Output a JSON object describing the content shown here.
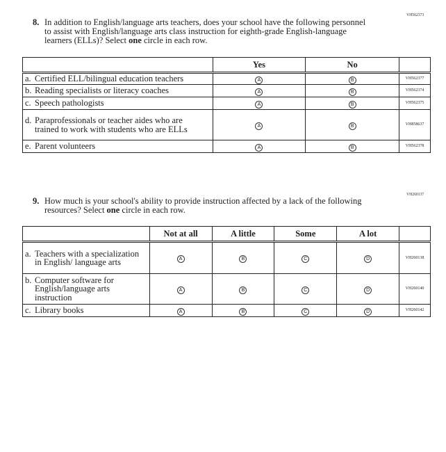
{
  "q8": {
    "code": "VH562373",
    "number": "8.",
    "text_before": "In addition to English/language arts teachers, does your school have the following personnel to assist with English/language arts class instruction for eighth-grade English-language learners (ELLs)? Select ",
    "text_bold": "one",
    "text_after": " circle in each row.",
    "columns": [
      "Yes",
      "No"
    ],
    "rows": [
      {
        "letter": "a.",
        "label": "Certified ELL/bilingual education teachers",
        "code": "VH562377"
      },
      {
        "letter": "b.",
        "label": "Reading specialists or literacy coaches",
        "code": "VH562374"
      },
      {
        "letter": "c.",
        "label": "Speech pathologists",
        "code": "VH562375"
      },
      {
        "letter": "d.",
        "label": "Paraprofessionals or teacher aides who are trained to work with students who are ELLs",
        "code": "VH858637"
      },
      {
        "letter": "e.",
        "label": "Parent volunteers",
        "code": "VH562378"
      }
    ],
    "bubbles": [
      "A",
      "B"
    ]
  },
  "q9": {
    "code": "VH260137",
    "number": "9.",
    "text_before": "How much is your school's ability to provide instruction affected by a lack of the following resources? Select ",
    "text_bold": "one",
    "text_after": " circle in each row.",
    "columns": [
      "Not at all",
      "A little",
      "Some",
      "A lot"
    ],
    "rows": [
      {
        "letter": "a.",
        "label": "Teachers with a specialization in English/ language arts",
        "code": "VH260138"
      },
      {
        "letter": "b.",
        "label": "Computer software for English/language arts instruction",
        "code": "VH260140"
      },
      {
        "letter": "c.",
        "label": "Library books",
        "code": "VH260142"
      }
    ],
    "bubbles": [
      "A",
      "B",
      "C",
      "D"
    ]
  }
}
